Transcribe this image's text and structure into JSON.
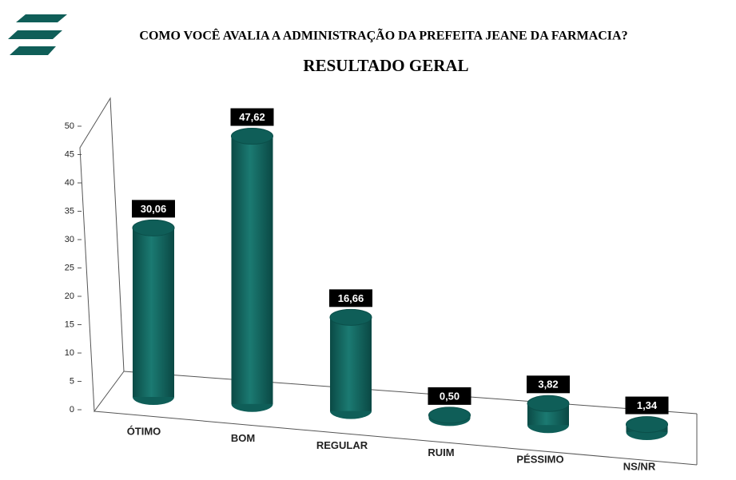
{
  "chart_data": {
    "type": "bar",
    "title": "COMO VOCÊ AVALIA A ADMINISTRAÇÃO DA PREFEITA JEANE DA FARMACIA?",
    "subtitle": "RESULTADO GERAL",
    "categories": [
      "ÓTIMO",
      "BOM",
      "REGULAR",
      "RUIM",
      "PÉSSIMO",
      "NS/NR"
    ],
    "values": [
      30.06,
      47.62,
      16.66,
      0.5,
      3.82,
      1.34
    ],
    "value_labels": [
      "30,06",
      "47,62",
      "16,66",
      "0,50",
      "3,82",
      "1,34"
    ],
    "color": "#0f5e58",
    "ylim": [
      0,
      50
    ],
    "yticks": [
      0,
      5,
      10,
      15,
      20,
      25,
      30,
      35,
      40,
      45,
      50
    ]
  }
}
